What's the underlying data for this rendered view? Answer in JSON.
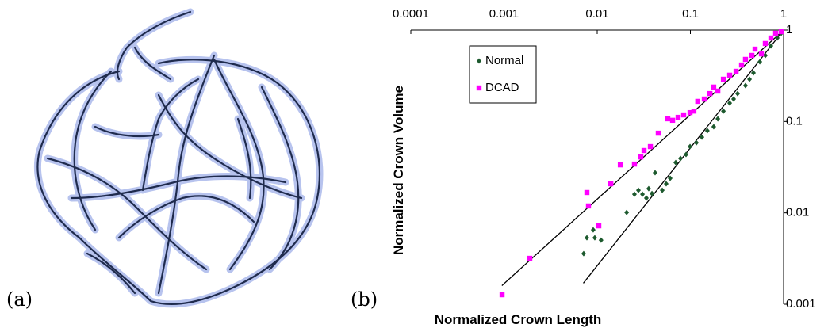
{
  "panel_labels": [
    "(a)",
    "(b)"
  ],
  "chart_data": {
    "type": "scatter",
    "x_log": true,
    "y_log": true,
    "xlabel": "Normalized Crown Length",
    "ylabel": "Normalized Crown Volume",
    "xlim": [
      0.0001,
      1
    ],
    "xticks": [
      0.0001,
      0.001,
      0.01,
      0.1,
      1
    ],
    "ylim": [
      0.001,
      1
    ],
    "yticks": [
      0.001,
      0.01,
      0.1,
      1
    ],
    "legend": "upper left",
    "series": [
      {
        "name": "Normal",
        "color": "#1d5a2e",
        "marker": "diamond",
        "x": [
          0.00716,
          0.00906,
          0.00775,
          0.00942,
          0.011,
          0.0207,
          0.0251,
          0.0277,
          0.0306,
          0.0337,
          0.0357,
          0.0387,
          0.0418,
          0.0499,
          0.055,
          0.0607,
          0.0696,
          0.0783,
          0.0898,
          0.0991,
          0.116,
          0.133,
          0.152,
          0.178,
          0.197,
          0.226,
          0.264,
          0.291,
          0.321,
          0.39,
          0.431,
          0.475,
          0.556,
          0.637,
          0.731,
          0.855,
          0.943
        ],
        "values": [
          0.00358,
          0.00652,
          0.00534,
          0.00534,
          0.00503,
          0.0101,
          0.016,
          0.0177,
          0.016,
          0.0145,
          0.0184,
          0.0163,
          0.0275,
          0.0177,
          0.0208,
          0.0239,
          0.0356,
          0.0394,
          0.0435,
          0.0531,
          0.0586,
          0.0674,
          0.0792,
          0.0875,
          0.107,
          0.13,
          0.159,
          0.176,
          0.202,
          0.247,
          0.29,
          0.34,
          0.45,
          0.528,
          0.671,
          0.819,
          0.923
        ]
      },
      {
        "name": "DCAD",
        "color": "#ff00ff",
        "marker": "square",
        "x": [
          0.000953,
          0.00189,
          0.00775,
          0.00806,
          0.0104,
          0.014,
          0.0177,
          0.0251,
          0.0294,
          0.0318,
          0.0372,
          0.0452,
          0.0572,
          0.0644,
          0.0738,
          0.0847,
          0.0991,
          0.109,
          0.12,
          0.141,
          0.162,
          0.178,
          0.197,
          0.226,
          0.264,
          0.309,
          0.354,
          0.39,
          0.457,
          0.494,
          0.578,
          0.637,
          0.731,
          0.822,
          0.943
        ],
        "values": [
          0.00127,
          0.00318,
          0.0167,
          0.0119,
          0.00721,
          0.0208,
          0.0335,
          0.0342,
          0.0409,
          0.0481,
          0.0531,
          0.0745,
          0.107,
          0.103,
          0.111,
          0.118,
          0.125,
          0.13,
          0.166,
          0.176,
          0.202,
          0.238,
          0.215,
          0.29,
          0.321,
          0.354,
          0.415,
          0.478,
          0.528,
          0.619,
          0.549,
          0.713,
          0.819,
          0.923,
          0.961
        ]
      }
    ],
    "fit_lines": [
      {
        "color": "#000000",
        "x": [
          0.00095,
          1
        ],
        "values": [
          0.0016,
          1
        ]
      },
      {
        "color": "#000000",
        "x": [
          0.0071,
          1
        ],
        "values": [
          0.0017,
          1
        ]
      }
    ]
  }
}
